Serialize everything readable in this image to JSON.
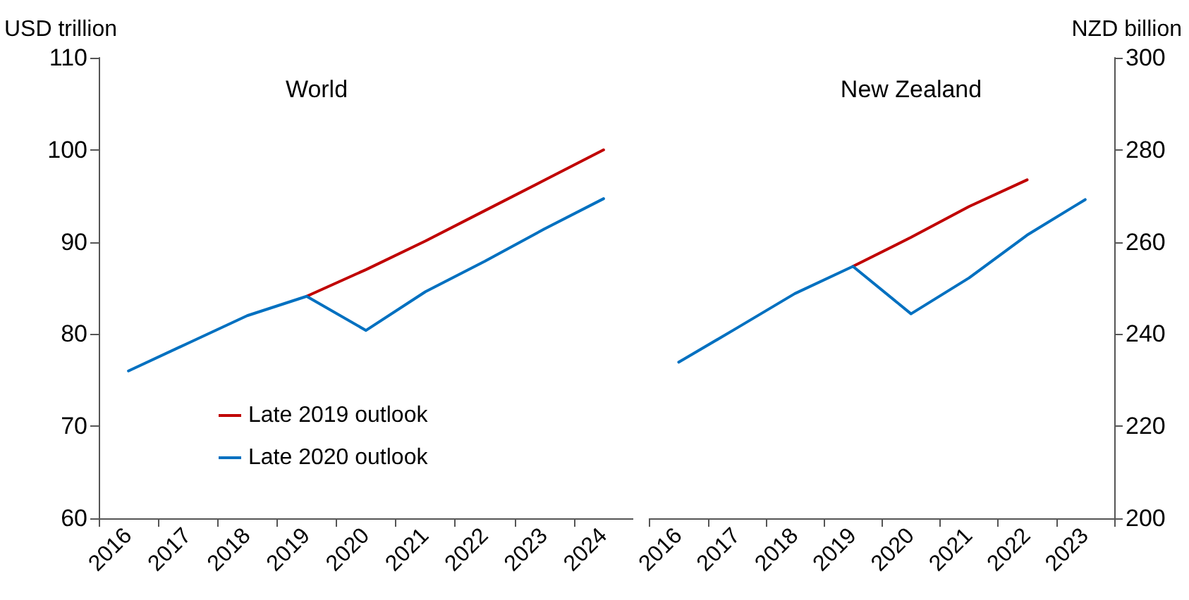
{
  "chart_data": [
    {
      "type": "line",
      "title": "World",
      "ylabel": "USD trillion",
      "categories": [
        "2016",
        "2017",
        "2018",
        "2019",
        "2020",
        "2021",
        "2022",
        "2023",
        "2024"
      ],
      "series": [
        {
          "name": "Late 2019 outlook",
          "color": "#c00000",
          "values": [
            null,
            null,
            null,
            84.1,
            87.0,
            90.1,
            93.4,
            96.7,
            100.0
          ]
        },
        {
          "name": "Late 2020 outlook",
          "color": "#0070c0",
          "values": [
            76.0,
            79.0,
            82.0,
            84.1,
            80.4,
            84.6,
            87.9,
            91.4,
            94.7
          ]
        }
      ],
      "ylim": [
        60,
        110
      ],
      "yticks": [
        60,
        70,
        80,
        90,
        100,
        110
      ],
      "grid": false,
      "legend": "bottom",
      "marker": "none",
      "line_style": "solid"
    },
    {
      "type": "line",
      "title": "New Zealand",
      "ylabel": "NZD billion",
      "categories": [
        "2016",
        "2017",
        "2018",
        "2019",
        "2020",
        "2021",
        "2022",
        "2023"
      ],
      "series": [
        {
          "color": "#c00000",
          "values": [
            null,
            null,
            null,
            254.7,
            261.0,
            267.7,
            273.5,
            null
          ]
        },
        {
          "color": "#0070c0",
          "values": [
            233.9,
            241.3,
            248.8,
            254.7,
            244.4,
            252.2,
            261.5,
            269.2
          ]
        }
      ],
      "ylim": [
        200,
        300
      ],
      "yticks": [
        200,
        220,
        240,
        260,
        280,
        300
      ],
      "grid": false,
      "legend": false,
      "marker": "none",
      "line_style": "solid"
    }
  ]
}
